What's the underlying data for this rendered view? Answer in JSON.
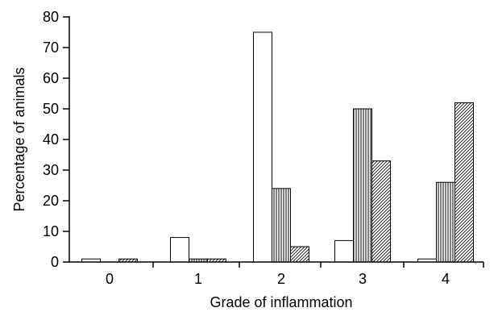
{
  "chart_data": {
    "type": "bar",
    "xlabel": "Grade of inflammation",
    "ylabel": "Percentage of animals",
    "categories": [
      "0",
      "1",
      "2",
      "3",
      "4"
    ],
    "ylim": [
      0,
      80
    ],
    "yticks": [
      0,
      10,
      20,
      30,
      40,
      50,
      60,
      70,
      80
    ],
    "grid": false,
    "legend": "none",
    "series": [
      {
        "pattern": "blank",
        "values": [
          1,
          8,
          75,
          7,
          1
        ]
      },
      {
        "pattern": "vertical-lines",
        "values": [
          0,
          1,
          24,
          50,
          26
        ]
      },
      {
        "pattern": "diagonal-lines",
        "values": [
          1,
          1,
          5,
          33,
          52
        ]
      }
    ]
  }
}
